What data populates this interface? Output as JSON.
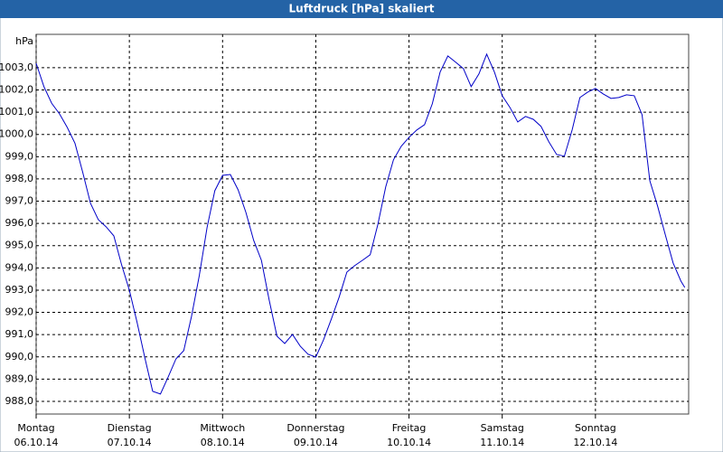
{
  "chart_data": {
    "type": "line",
    "title": "Luftdruck [hPa] skaliert",
    "y_unit": "hPa",
    "color": "#0000c8",
    "grid": true,
    "x": [
      0,
      2,
      4,
      6,
      8,
      10,
      12,
      14,
      16,
      18,
      20,
      22,
      24,
      26,
      28,
      30,
      32,
      34,
      36,
      38,
      40,
      42,
      44,
      46,
      48,
      50,
      52,
      54,
      56,
      58,
      60,
      62,
      64,
      66,
      68,
      70,
      72,
      74,
      76,
      78,
      80,
      82,
      84,
      86,
      88,
      90,
      92,
      94,
      96,
      98,
      100,
      102,
      104,
      106,
      108,
      110,
      112,
      114,
      116,
      118,
      120,
      122,
      124,
      126,
      128,
      130,
      132,
      134,
      136,
      138,
      140,
      142,
      144,
      146,
      148,
      150,
      152,
      154,
      156,
      158,
      160,
      162,
      164,
      166,
      167
    ],
    "values": [
      1003.2,
      1002.15,
      1001.4,
      1000.93,
      1000.32,
      999.6,
      998.29,
      996.9,
      996.17,
      995.85,
      995.44,
      994.14,
      993.0,
      991.54,
      989.95,
      988.45,
      988.33,
      989.1,
      989.91,
      990.28,
      991.82,
      993.65,
      995.81,
      997.47,
      998.16,
      998.2,
      997.51,
      996.5,
      995.24,
      994.34,
      992.55,
      990.93,
      990.6,
      991.01,
      990.48,
      990.12,
      989.99,
      990.77,
      991.7,
      992.68,
      993.81,
      994.1,
      994.34,
      994.59,
      995.97,
      997.64,
      998.86,
      999.47,
      999.87,
      1000.2,
      1000.44,
      1001.38,
      1002.8,
      1003.53,
      1003.25,
      1002.96,
      1002.15,
      1002.72,
      1003.61,
      1002.8,
      1001.74,
      1001.21,
      1000.56,
      1000.81,
      1000.68,
      1000.36,
      999.67,
      999.1,
      999.02,
      1000.2,
      1001.66,
      1001.9,
      1002.07,
      1001.82,
      1001.62,
      1001.66,
      1001.78,
      1001.74,
      1000.89,
      997.92,
      996.78,
      995.48,
      994.22,
      993.41,
      993.12
    ],
    "xlim": [
      0,
      168
    ],
    "xticks": [
      {
        "value": 0,
        "label": [
          "Montag",
          "06.10.14"
        ]
      },
      {
        "value": 24,
        "label": [
          "Dienstag",
          "07.10.14"
        ]
      },
      {
        "value": 48,
        "label": [
          "Mittwoch",
          "08.10.14"
        ]
      },
      {
        "value": 72,
        "label": [
          "Donnerstag",
          "09.10.14"
        ]
      },
      {
        "value": 96,
        "label": [
          "Freitag",
          "10.10.14"
        ]
      },
      {
        "value": 120,
        "label": [
          "Samstag",
          "11.10.14"
        ]
      },
      {
        "value": 144,
        "label": [
          "Sonntag",
          "12.10.14"
        ]
      }
    ],
    "ylim": [
      987.43,
      1004.5
    ],
    "yticks": [
      {
        "value": 988,
        "label": "988,0"
      },
      {
        "value": 989,
        "label": "989,0"
      },
      {
        "value": 990,
        "label": "990,0"
      },
      {
        "value": 991,
        "label": "991,0"
      },
      {
        "value": 992,
        "label": "992,0"
      },
      {
        "value": 993,
        "label": "993,0"
      },
      {
        "value": 994,
        "label": "994,0"
      },
      {
        "value": 995,
        "label": "995,0"
      },
      {
        "value": 996,
        "label": "996,0"
      },
      {
        "value": 997,
        "label": "997,0"
      },
      {
        "value": 998,
        "label": "998,0"
      },
      {
        "value": 999,
        "label": "999,0"
      },
      {
        "value": 1000,
        "label": "1000,0"
      },
      {
        "value": 1001,
        "label": "1001,0"
      },
      {
        "value": 1002,
        "label": "1002,0"
      },
      {
        "value": 1003,
        "label": "1003,0"
      }
    ]
  }
}
